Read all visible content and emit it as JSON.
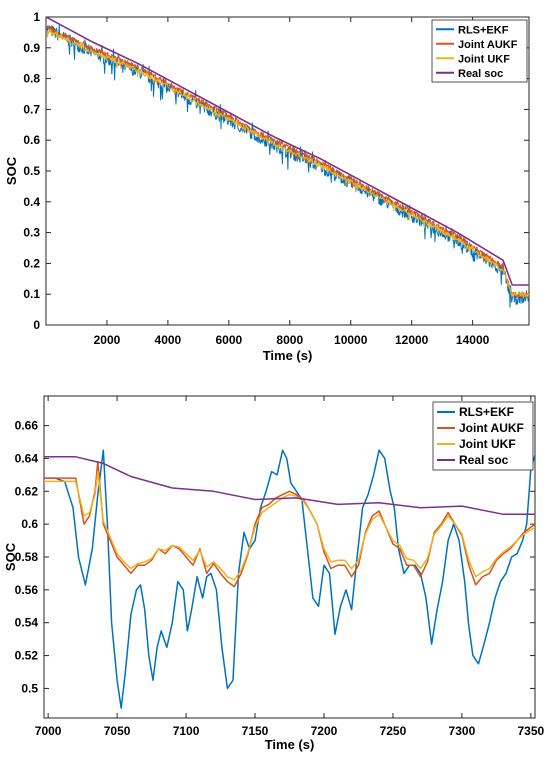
{
  "chart_data": [
    {
      "type": "line",
      "xlabel": "Time (s)",
      "ylabel": "SOC",
      "xlim": [
        0,
        15850
      ],
      "ylim": [
        0,
        1
      ],
      "xticks": [
        2000,
        4000,
        6000,
        8000,
        10000,
        12000,
        14000
      ],
      "yticks": [
        0,
        0.1,
        0.2,
        0.3,
        0.4,
        0.5,
        0.6,
        0.7,
        0.8,
        0.9,
        1
      ],
      "legend_position": "top-right",
      "series": [
        {
          "name": "RLS+EKF",
          "color": "#0072BD",
          "x": [
            0,
            1500,
            3000,
            4500,
            6000,
            7500,
            9000,
            10500,
            12000,
            13500,
            15000,
            15300,
            15850
          ],
          "values": [
            0.97,
            0.89,
            0.83,
            0.75,
            0.67,
            0.59,
            0.52,
            0.44,
            0.36,
            0.28,
            0.18,
            0.09,
            0.1
          ]
        },
        {
          "name": "Joint AUKF",
          "color": "#D95319",
          "x": [
            0,
            1500,
            3000,
            4500,
            6000,
            7500,
            9000,
            10500,
            12000,
            13500,
            15000,
            15300,
            15850
          ],
          "values": [
            0.97,
            0.9,
            0.84,
            0.76,
            0.68,
            0.6,
            0.53,
            0.45,
            0.37,
            0.29,
            0.19,
            0.1,
            0.1
          ]
        },
        {
          "name": "Joint UKF",
          "color": "#EDB120",
          "x": [
            0,
            1500,
            3000,
            4500,
            6000,
            7500,
            9000,
            10500,
            12000,
            13500,
            15000,
            15300,
            15850
          ],
          "values": [
            0.96,
            0.89,
            0.83,
            0.75,
            0.67,
            0.59,
            0.52,
            0.44,
            0.36,
            0.28,
            0.18,
            0.1,
            0.1
          ]
        },
        {
          "name": "Real soc",
          "color": "#7E2F8E",
          "x": [
            0,
            1500,
            3000,
            4500,
            6000,
            7500,
            9000,
            10500,
            12000,
            13500,
            15000,
            15300,
            15850
          ],
          "values": [
            1.0,
            0.92,
            0.85,
            0.77,
            0.69,
            0.61,
            0.54,
            0.46,
            0.38,
            0.3,
            0.21,
            0.13,
            0.13
          ]
        }
      ]
    },
    {
      "type": "line",
      "xlabel": "Time (s)",
      "ylabel": "SOC",
      "xlim": [
        6997,
        7353
      ],
      "ylim": [
        0.482,
        0.678
      ],
      "xticks": [
        7000,
        7050,
        7100,
        7150,
        7200,
        7250,
        7300,
        7350
      ],
      "yticks": [
        0.5,
        0.52,
        0.54,
        0.56,
        0.58,
        0.6,
        0.62,
        0.64,
        0.66
      ],
      "legend_position": "top-right",
      "series": [
        {
          "name": "RLS+EKF",
          "color": "#0072BD",
          "x": [
            6997,
            7005,
            7012,
            7018,
            7022,
            7027,
            7032,
            7036,
            7040,
            7043,
            7046,
            7050,
            7053,
            7056,
            7060,
            7064,
            7067,
            7070,
            7073,
            7076,
            7079,
            7082,
            7086,
            7090,
            7094,
            7098,
            7101,
            7104,
            7108,
            7112,
            7115,
            7118,
            7122,
            7126,
            7130,
            7134,
            7138,
            7142,
            7146,
            7150,
            7154,
            7158,
            7162,
            7166,
            7170,
            7173,
            7176,
            7180,
            7184,
            7188,
            7192,
            7196,
            7200,
            7204,
            7208,
            7212,
            7216,
            7220,
            7224,
            7228,
            7232,
            7236,
            7240,
            7244,
            7248,
            7251,
            7254,
            7258,
            7262,
            7266,
            7270,
            7274,
            7278,
            7282,
            7286,
            7290,
            7294,
            7298,
            7302,
            7305,
            7308,
            7312,
            7316,
            7320,
            7324,
            7328,
            7332,
            7336,
            7340,
            7344,
            7347,
            7350,
            7353
          ],
          "values": [
            0.628,
            0.628,
            0.626,
            0.61,
            0.58,
            0.563,
            0.585,
            0.618,
            0.645,
            0.6,
            0.54,
            0.505,
            0.488,
            0.51,
            0.545,
            0.56,
            0.563,
            0.548,
            0.52,
            0.505,
            0.525,
            0.535,
            0.525,
            0.54,
            0.565,
            0.56,
            0.535,
            0.548,
            0.568,
            0.555,
            0.568,
            0.57,
            0.56,
            0.525,
            0.5,
            0.505,
            0.57,
            0.595,
            0.585,
            0.59,
            0.61,
            0.62,
            0.632,
            0.63,
            0.645,
            0.64,
            0.625,
            0.62,
            0.615,
            0.585,
            0.555,
            0.55,
            0.575,
            0.57,
            0.533,
            0.55,
            0.56,
            0.548,
            0.58,
            0.61,
            0.618,
            0.63,
            0.645,
            0.64,
            0.62,
            0.61,
            0.585,
            0.57,
            0.575,
            0.575,
            0.57,
            0.555,
            0.527,
            0.548,
            0.565,
            0.59,
            0.6,
            0.59,
            0.565,
            0.538,
            0.52,
            0.515,
            0.527,
            0.54,
            0.555,
            0.565,
            0.57,
            0.58,
            0.582,
            0.59,
            0.6,
            0.634,
            0.642
          ]
        },
        {
          "name": "Joint AUKF",
          "color": "#D95319",
          "x": [
            6997,
            7010,
            7020,
            7026,
            7030,
            7034,
            7036,
            7040,
            7045,
            7050,
            7055,
            7060,
            7065,
            7070,
            7075,
            7080,
            7085,
            7090,
            7095,
            7100,
            7105,
            7110,
            7115,
            7120,
            7125,
            7130,
            7135,
            7140,
            7145,
            7150,
            7155,
            7160,
            7165,
            7170,
            7175,
            7180,
            7185,
            7190,
            7195,
            7200,
            7205,
            7210,
            7215,
            7220,
            7225,
            7230,
            7235,
            7240,
            7245,
            7250,
            7255,
            7260,
            7265,
            7270,
            7275,
            7280,
            7285,
            7290,
            7295,
            7300,
            7305,
            7310,
            7315,
            7320,
            7325,
            7330,
            7335,
            7340,
            7345,
            7353
          ],
          "values": [
            0.628,
            0.628,
            0.628,
            0.6,
            0.605,
            0.62,
            0.638,
            0.6,
            0.59,
            0.58,
            0.575,
            0.57,
            0.575,
            0.575,
            0.578,
            0.585,
            0.582,
            0.587,
            0.585,
            0.58,
            0.575,
            0.585,
            0.57,
            0.576,
            0.57,
            0.565,
            0.562,
            0.57,
            0.582,
            0.6,
            0.61,
            0.612,
            0.616,
            0.618,
            0.62,
            0.618,
            0.615,
            0.608,
            0.6,
            0.583,
            0.573,
            0.575,
            0.575,
            0.568,
            0.575,
            0.595,
            0.605,
            0.608,
            0.598,
            0.588,
            0.585,
            0.575,
            0.575,
            0.568,
            0.577,
            0.595,
            0.6,
            0.607,
            0.6,
            0.593,
            0.575,
            0.563,
            0.568,
            0.57,
            0.578,
            0.582,
            0.585,
            0.59,
            0.595,
            0.6
          ]
        },
        {
          "name": "Joint UKF",
          "color": "#EDB120",
          "x": [
            6997,
            7010,
            7020,
            7026,
            7030,
            7034,
            7036,
            7040,
            7045,
            7050,
            7055,
            7060,
            7065,
            7070,
            7075,
            7080,
            7085,
            7090,
            7095,
            7100,
            7105,
            7110,
            7115,
            7120,
            7125,
            7130,
            7135,
            7140,
            7145,
            7150,
            7155,
            7160,
            7165,
            7170,
            7175,
            7180,
            7185,
            7190,
            7195,
            7200,
            7205,
            7210,
            7215,
            7220,
            7225,
            7230,
            7235,
            7240,
            7245,
            7250,
            7255,
            7260,
            7265,
            7270,
            7275,
            7280,
            7285,
            7290,
            7295,
            7300,
            7305,
            7310,
            7315,
            7320,
            7325,
            7330,
            7335,
            7340,
            7345,
            7353
          ],
          "values": [
            0.626,
            0.626,
            0.626,
            0.605,
            0.607,
            0.618,
            0.632,
            0.602,
            0.592,
            0.582,
            0.577,
            0.573,
            0.576,
            0.577,
            0.579,
            0.585,
            0.584,
            0.587,
            0.586,
            0.582,
            0.578,
            0.584,
            0.574,
            0.577,
            0.573,
            0.568,
            0.566,
            0.572,
            0.583,
            0.598,
            0.607,
            0.61,
            0.613,
            0.616,
            0.618,
            0.617,
            0.614,
            0.608,
            0.6,
            0.585,
            0.577,
            0.578,
            0.578,
            0.573,
            0.578,
            0.594,
            0.603,
            0.606,
            0.598,
            0.59,
            0.587,
            0.579,
            0.578,
            0.573,
            0.579,
            0.594,
            0.599,
            0.605,
            0.6,
            0.594,
            0.578,
            0.568,
            0.571,
            0.573,
            0.579,
            0.583,
            0.586,
            0.59,
            0.594,
            0.598
          ]
        },
        {
          "name": "Real soc",
          "color": "#7E2F8E",
          "x": [
            6997,
            7020,
            7040,
            7060,
            7090,
            7120,
            7150,
            7180,
            7210,
            7240,
            7270,
            7300,
            7330,
            7353
          ],
          "values": [
            0.641,
            0.641,
            0.637,
            0.629,
            0.622,
            0.62,
            0.615,
            0.616,
            0.612,
            0.613,
            0.61,
            0.611,
            0.606,
            0.606
          ]
        }
      ]
    }
  ]
}
